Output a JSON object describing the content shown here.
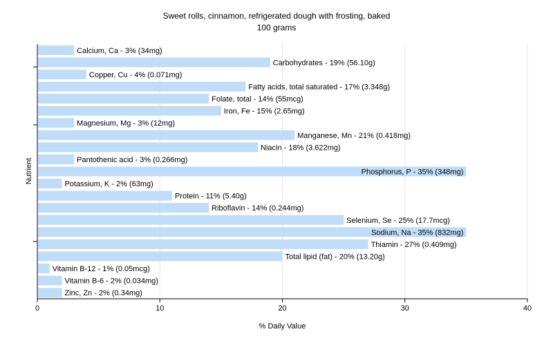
{
  "chart_data": {
    "type": "bar",
    "orientation": "horizontal",
    "title": "Sweet rolls, cinnamon, refrigerated dough with frosting, baked",
    "subtitle": "100 grams",
    "xlabel": "% Daily Value",
    "ylabel": "Nutrient",
    "xlim": [
      0,
      40
    ],
    "xticks": [
      "0",
      "10",
      "20",
      "30",
      "40"
    ],
    "grid": true,
    "bar_color": "#bfdcf9",
    "grid_color": "#e6e6e6",
    "categories": [
      "Calcium, Ca - 3% (34mg)",
      "Carbohydrates - 19% (56.10g)",
      "Copper, Cu - 4% (0.071mg)",
      "Fatty acids, total saturated - 17% (3.348g)",
      "Folate, total - 14% (55mcg)",
      "Iron, Fe - 15% (2.65mg)",
      "Magnesium, Mg - 3% (12mg)",
      "Manganese, Mn - 21% (0.418mg)",
      "Niacin - 18% (3.622mg)",
      "Pantothenic acid - 3% (0.266mg)",
      "Phosphorus, P - 35% (348mg)",
      "Potassium, K - 2% (63mg)",
      "Protein - 11% (5.40g)",
      "Riboflavin - 14% (0.244mg)",
      "Selenium, Se - 25% (17.7mcg)",
      "Sodium, Na - 35% (832mg)",
      "Thiamin - 27% (0.409mg)",
      "Total lipid (fat) - 20% (13.20g)",
      "Vitamin B-12 - 1% (0.05mcg)",
      "Vitamin B-6 - 2% (0.034mg)",
      "Zinc, Zn - 2% (0.34mg)"
    ],
    "values": [
      3,
      19,
      4,
      17,
      14,
      15,
      3,
      21,
      18,
      3,
      35,
      2,
      11,
      14,
      25,
      35,
      27,
      20,
      1,
      2,
      2
    ]
  }
}
